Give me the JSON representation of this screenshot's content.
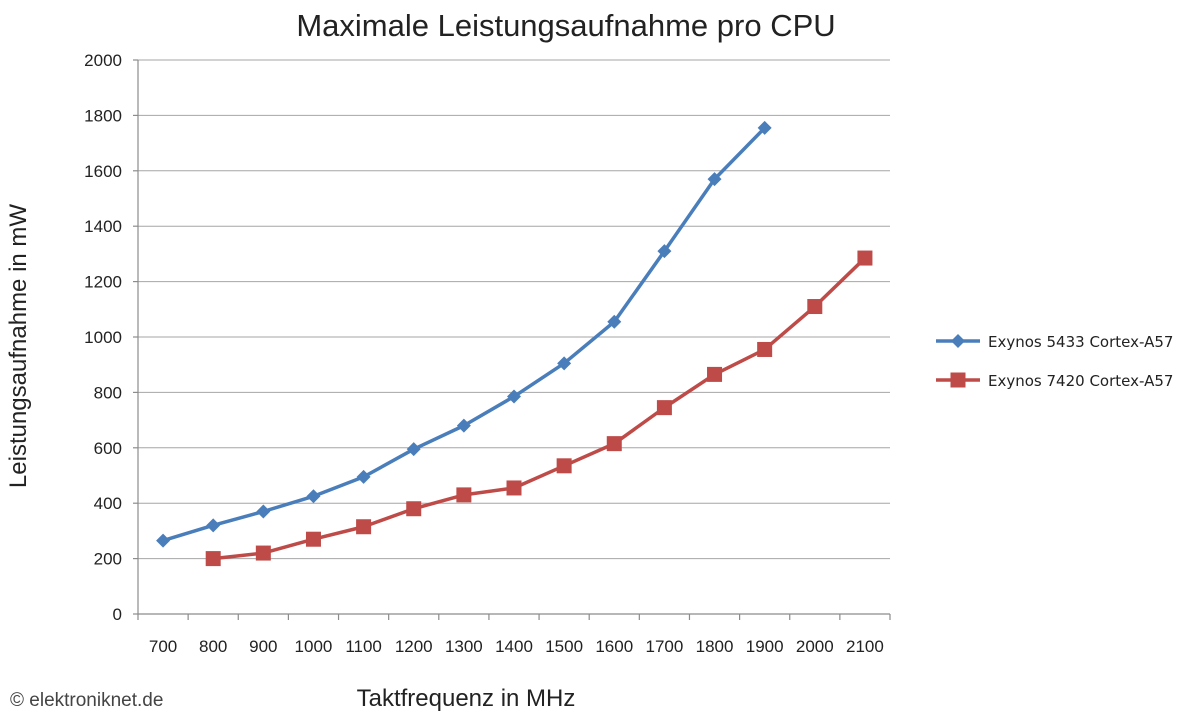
{
  "chart_data": {
    "type": "line",
    "title": "Maximale Leistungsaufnahme pro CPU",
    "xlabel": "Taktfrequenz  in MHz",
    "ylabel": "Leistungsaufnahme  in mW",
    "categories": [
      "700",
      "800",
      "900",
      "1000",
      "1100",
      "1200",
      "1300",
      "1400",
      "1500",
      "1600",
      "1700",
      "1800",
      "1900",
      "2000",
      "2100"
    ],
    "ylim": [
      0,
      2000
    ],
    "yticks": [
      "0",
      "200",
      "400",
      "600",
      "800",
      "1000",
      "1200",
      "1400",
      "1600",
      "1800",
      "2000"
    ],
    "grid": true,
    "legend_position": "right",
    "series": [
      {
        "name": "Exynos 5433 Cortex-A57",
        "color": "#4a7ebb",
        "marker": "diamond",
        "values": [
          265,
          320,
          370,
          425,
          495,
          595,
          680,
          785,
          905,
          1055,
          1310,
          1570,
          1755,
          null,
          null
        ]
      },
      {
        "name": "Exynos 7420 Cortex-A57",
        "color": "#be4b48",
        "marker": "square",
        "values": [
          null,
          200,
          220,
          270,
          315,
          380,
          430,
          455,
          535,
          615,
          745,
          865,
          955,
          1110,
          1285
        ]
      }
    ]
  },
  "watermark": "© elektroniknet.de"
}
